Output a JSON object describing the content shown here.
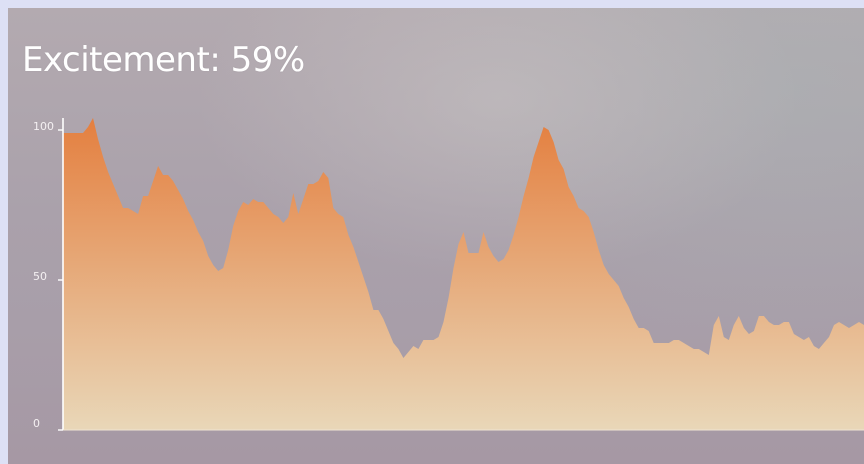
{
  "header": {
    "title": "Excitement: 59%"
  },
  "colors": {
    "fill_top": "#e47f3f",
    "fill_bottom": "#e9d7b8",
    "axis": "#ffffff"
  },
  "chart_data": {
    "type": "area",
    "title": "Excitement: 59%",
    "xlabel": "",
    "ylabel": "",
    "ylim": [
      0,
      100
    ],
    "yticks": [
      "0",
      "50",
      "100"
    ],
    "grid": false,
    "x": [
      0,
      1,
      2,
      3,
      4,
      5,
      6,
      7,
      8,
      9,
      10,
      11,
      12,
      13,
      14,
      15,
      16,
      17,
      18,
      19,
      20,
      21,
      22,
      23,
      24,
      25,
      26,
      27,
      28,
      29,
      30,
      31,
      32,
      33,
      34,
      35,
      36,
      37,
      38,
      39,
      40,
      41,
      42,
      43,
      44,
      45,
      46,
      47,
      48,
      49,
      50,
      51,
      52,
      53,
      54,
      55,
      56,
      57,
      58,
      59,
      60,
      61,
      62,
      63,
      64,
      65,
      66,
      67,
      68,
      69,
      70,
      71,
      72,
      73,
      74,
      75,
      76,
      77,
      78,
      79,
      80,
      81,
      82,
      83,
      84,
      85,
      86,
      87,
      88,
      89,
      90,
      91,
      92,
      93,
      94,
      95,
      96,
      97,
      98,
      99,
      100,
      101,
      102,
      103,
      104,
      105,
      106,
      107,
      108,
      109,
      110,
      111,
      112,
      113,
      114,
      115,
      116,
      117,
      118,
      119,
      120,
      121,
      122,
      123,
      124,
      125,
      126,
      127,
      128,
      129,
      130,
      131,
      132,
      133,
      134,
      135,
      136,
      137,
      138,
      139,
      140,
      141,
      142,
      143,
      144,
      145,
      146,
      147,
      148,
      149,
      150,
      151,
      152,
      153,
      154,
      155,
      156,
      157,
      158,
      159,
      160
    ],
    "series": [
      {
        "values": [
          99,
          99,
          99,
          99,
          99,
          101,
          104,
          97,
          91,
          86,
          82,
          78,
          74,
          74,
          73,
          72,
          78,
          78,
          83,
          88,
          85,
          85,
          83,
          80,
          77,
          73,
          70,
          66,
          63,
          58,
          55,
          53,
          54,
          60,
          68,
          73,
          76,
          75,
          77,
          76,
          76,
          74,
          72,
          71,
          69,
          71,
          79,
          72,
          77,
          82,
          82,
          83,
          86,
          84,
          74,
          72,
          71,
          65,
          61,
          56,
          51,
          46,
          40,
          40,
          37,
          33,
          29,
          27,
          24,
          26,
          28,
          27,
          30,
          30,
          30,
          31,
          36,
          44,
          54,
          62,
          66,
          59,
          59,
          59,
          66,
          61,
          58,
          56,
          57,
          60,
          65,
          71,
          78,
          84,
          91,
          96,
          101,
          100,
          96,
          90,
          87,
          81,
          78,
          74,
          73,
          71,
          66,
          60,
          55,
          52,
          50,
          48,
          44,
          41,
          37,
          34,
          34,
          33,
          29,
          29,
          29,
          29,
          30,
          30,
          29,
          28,
          27,
          27,
          26,
          25,
          35,
          38,
          31,
          30,
          35,
          38,
          34,
          32,
          33,
          38,
          38,
          36,
          35,
          35,
          36,
          36,
          32,
          31,
          30,
          31,
          28,
          27,
          29,
          31,
          35,
          36,
          35,
          34,
          35,
          36,
          35
        ]
      }
    ]
  }
}
